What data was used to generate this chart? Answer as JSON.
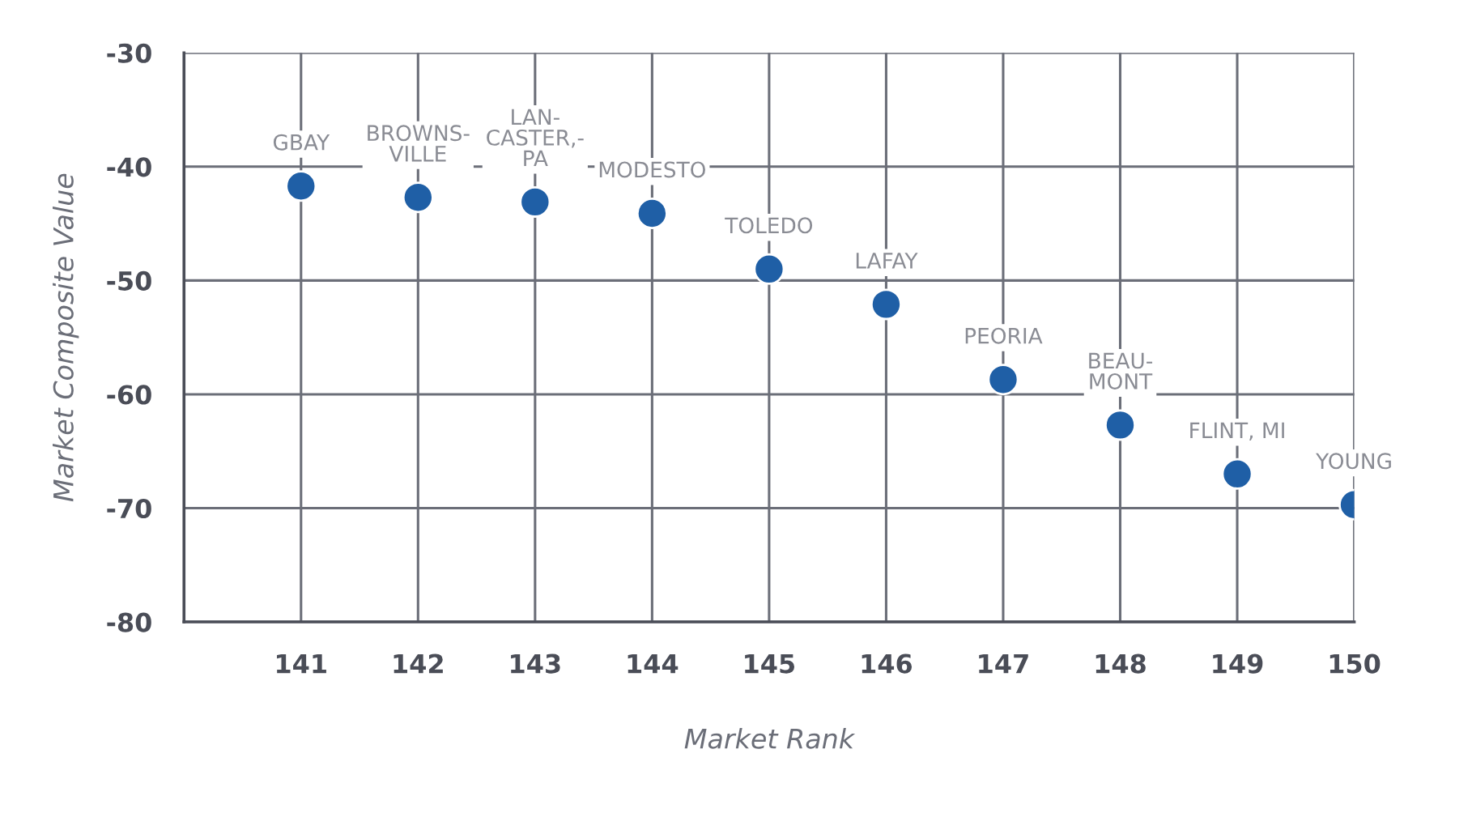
{
  "chart_data": {
    "type": "scatter",
    "xlabel": "Market Rank",
    "ylabel": "Market Composite Value",
    "x": [
      141,
      142,
      143,
      144,
      145,
      146,
      147,
      148,
      149,
      150
    ],
    "series": [
      {
        "color": "#1f5fa6",
        "values": [
          -41.7,
          -42.7,
          -43.1,
          -44.1,
          -49.0,
          -52.1,
          -58.7,
          -62.7,
          -67.0,
          -69.7
        ]
      }
    ],
    "xlim": [
      140,
      150
    ],
    "xticks": [
      141,
      142,
      143,
      144,
      145,
      146,
      147,
      148,
      149,
      150
    ],
    "ylim": [
      -80,
      -30
    ],
    "yticks": [
      -80,
      -70,
      -60,
      -50,
      -40,
      -30
    ],
    "grid": true,
    "marker": "circle",
    "annotations": [
      {
        "text": "GBAY",
        "x": 141,
        "y": -41.7
      },
      {
        "text": "BROWNS-\nVILLE",
        "x": 142,
        "y": -42.7
      },
      {
        "text": "LAN-\nCASTER,-\nPA",
        "x": 143,
        "y": -43.1
      },
      {
        "text": "MODESTO",
        "x": 144,
        "y": -44.1
      },
      {
        "text": "TOLEDO",
        "x": 145,
        "y": -49.0
      },
      {
        "text": "LAFAY",
        "x": 146,
        "y": -52.1
      },
      {
        "text": "PEORIA",
        "x": 147,
        "y": -58.7
      },
      {
        "text": "BEAU-\nMONT",
        "x": 148,
        "y": -62.7
      },
      {
        "text": "FLINT, MI",
        "x": 149,
        "y": -67.0
      },
      {
        "text": "YOUNG",
        "x": 150,
        "y": -69.7
      }
    ]
  }
}
